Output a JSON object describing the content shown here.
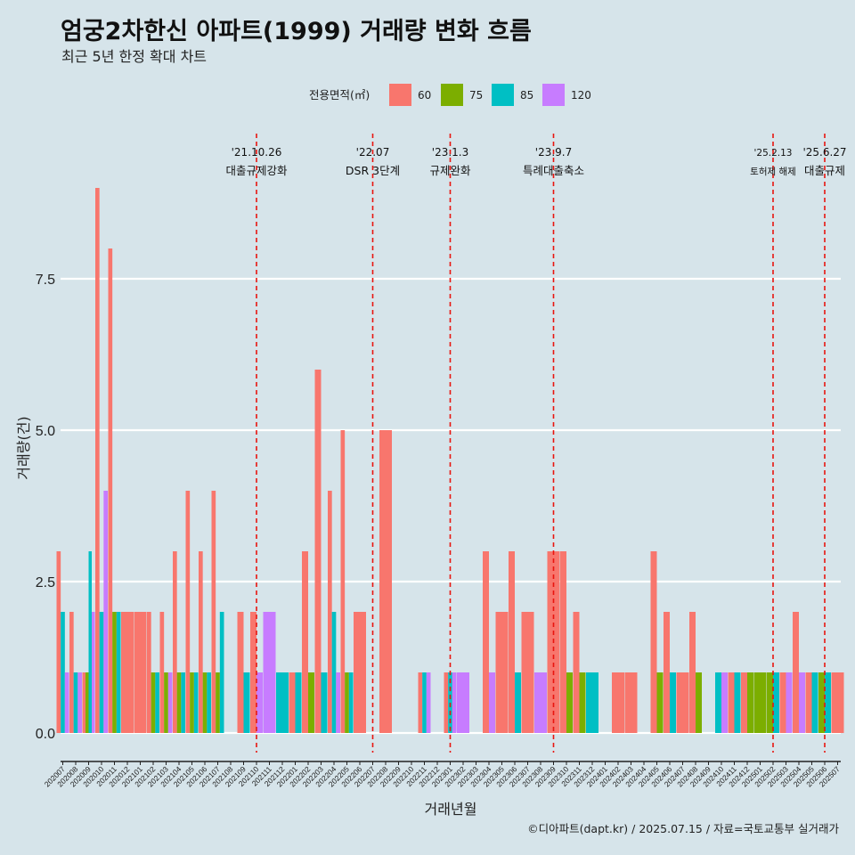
{
  "title": "엄궁2차한신 아파트(1999) 거래량 변화 흐름",
  "subtitle": "최근 5년 한정 확대 차트",
  "caption": "©디아파트(dapt.kr) / 2025.07.15 / 자료=국토교통부 실거래가",
  "colors": {
    "background": "#d6e4ea",
    "grid": "#ffffff",
    "event_line": "#e8150f",
    "60": "#f8766d",
    "75": "#7cae00",
    "85": "#00bfc4",
    "120": "#c77cff"
  },
  "chart_data": {
    "type": "bar",
    "position": "dodge",
    "title": "엄궁2차한신 아파트(1999) 거래량 변화 흐름",
    "subtitle": "최근 5년 한정 확대 차트",
    "xlabel": "거래년월",
    "ylabel": "거래량(건)",
    "ylim": [
      -0.4,
      9.5
    ],
    "yticks": [
      "0.0",
      "2.5",
      "5.0",
      "7.5"
    ],
    "ytick_values": [
      0,
      2.5,
      5,
      7.5
    ],
    "grid": true,
    "legend": {
      "title": "전용면적(㎡)",
      "placement": "top",
      "keys": [
        "60",
        "75",
        "85",
        "120"
      ]
    },
    "categories": [
      "202007",
      "202008",
      "202009",
      "202010",
      "202011",
      "202012",
      "202101",
      "202102",
      "202103",
      "202104",
      "202105",
      "202106",
      "202107",
      "202108",
      "202109",
      "202110",
      "202111",
      "202112",
      "202201",
      "202202",
      "202203",
      "202204",
      "202205",
      "202206",
      "202207",
      "202208",
      "202209",
      "202210",
      "202211",
      "202212",
      "202301",
      "202302",
      "202303",
      "202304",
      "202305",
      "202306",
      "202307",
      "202308",
      "202309",
      "202310",
      "202311",
      "202312",
      "202401",
      "202402",
      "202403",
      "202404",
      "202405",
      "202406",
      "202407",
      "202408",
      "202409",
      "202410",
      "202411",
      "202412",
      "202501",
      "202502",
      "202503",
      "202504",
      "202505",
      "202506",
      "202507"
    ],
    "months": [
      [
        {
          "a": "60",
          "v": 3
        },
        {
          "a": "85",
          "v": 2
        },
        {
          "a": "120",
          "v": 1
        }
      ],
      [
        {
          "a": "60",
          "v": 2
        },
        {
          "a": "85",
          "v": 1
        },
        {
          "a": "120",
          "v": 1
        }
      ],
      [
        {
          "a": "60",
          "v": 1
        },
        {
          "a": "75",
          "v": 1
        },
        {
          "a": "85",
          "v": 3
        },
        {
          "a": "120",
          "v": 2
        }
      ],
      [
        {
          "a": "60",
          "v": 9
        },
        {
          "a": "85",
          "v": 2
        },
        {
          "a": "120",
          "v": 4
        }
      ],
      [
        {
          "a": "60",
          "v": 8
        },
        {
          "a": "75",
          "v": 2
        },
        {
          "a": "85",
          "v": 2
        }
      ],
      [
        {
          "a": "60",
          "v": 2
        }
      ],
      [
        {
          "a": "60",
          "v": 2
        }
      ],
      [
        {
          "a": "60",
          "v": 2
        },
        {
          "a": "75",
          "v": 1
        },
        {
          "a": "85",
          "v": 1
        }
      ],
      [
        {
          "a": "60",
          "v": 2
        },
        {
          "a": "75",
          "v": 1
        },
        {
          "a": "120",
          "v": 1
        }
      ],
      [
        {
          "a": "60",
          "v": 3
        },
        {
          "a": "75",
          "v": 1
        },
        {
          "a": "85",
          "v": 1
        }
      ],
      [
        {
          "a": "60",
          "v": 4
        },
        {
          "a": "75",
          "v": 1
        },
        {
          "a": "85",
          "v": 1
        }
      ],
      [
        {
          "a": "60",
          "v": 3
        },
        {
          "a": "75",
          "v": 1
        },
        {
          "a": "85",
          "v": 1
        }
      ],
      [
        {
          "a": "60",
          "v": 4
        },
        {
          "a": "75",
          "v": 1
        },
        {
          "a": "85",
          "v": 2
        }
      ],
      [],
      [
        {
          "a": "60",
          "v": 2
        },
        {
          "a": "85",
          "v": 1
        }
      ],
      [
        {
          "a": "60",
          "v": 2
        },
        {
          "a": "120",
          "v": 1
        }
      ],
      [
        {
          "a": "120",
          "v": 2
        }
      ],
      [
        {
          "a": "85",
          "v": 1
        }
      ],
      [
        {
          "a": "60",
          "v": 1
        },
        {
          "a": "85",
          "v": 1
        }
      ],
      [
        {
          "a": "60",
          "v": 3
        },
        {
          "a": "75",
          "v": 1
        }
      ],
      [
        {
          "a": "60",
          "v": 6
        },
        {
          "a": "85",
          "v": 1
        }
      ],
      [
        {
          "a": "60",
          "v": 4
        },
        {
          "a": "85",
          "v": 2
        },
        {
          "a": "120",
          "v": 1
        }
      ],
      [
        {
          "a": "60",
          "v": 5
        },
        {
          "a": "75",
          "v": 1
        },
        {
          "a": "85",
          "v": 1
        }
      ],
      [
        {
          "a": "60",
          "v": 2
        }
      ],
      [],
      [
        {
          "a": "60",
          "v": 5
        }
      ],
      [],
      [],
      [
        {
          "a": "60",
          "v": 1
        },
        {
          "a": "85",
          "v": 1
        },
        {
          "a": "120",
          "v": 1
        }
      ],
      [],
      [
        {
          "a": "60",
          "v": 1
        },
        {
          "a": "85",
          "v": 1
        },
        {
          "a": "120",
          "v": 1
        }
      ],
      [
        {
          "a": "120",
          "v": 1
        }
      ],
      [],
      [
        {
          "a": "60",
          "v": 3
        },
        {
          "a": "120",
          "v": 1
        }
      ],
      [
        {
          "a": "60",
          "v": 2
        }
      ],
      [
        {
          "a": "60",
          "v": 3
        },
        {
          "a": "85",
          "v": 1
        }
      ],
      [
        {
          "a": "60",
          "v": 2
        }
      ],
      [
        {
          "a": "120",
          "v": 1
        }
      ],
      [
        {
          "a": "60",
          "v": 3
        }
      ],
      [
        {
          "a": "60",
          "v": 3
        },
        {
          "a": "75",
          "v": 1
        }
      ],
      [
        {
          "a": "60",
          "v": 2
        },
        {
          "a": "75",
          "v": 1
        }
      ],
      [
        {
          "a": "85",
          "v": 1
        }
      ],
      [],
      [
        {
          "a": "60",
          "v": 1
        }
      ],
      [
        {
          "a": "60",
          "v": 1
        }
      ],
      [],
      [
        {
          "a": "60",
          "v": 3
        },
        {
          "a": "75",
          "v": 1
        }
      ],
      [
        {
          "a": "60",
          "v": 2
        },
        {
          "a": "85",
          "v": 1
        }
      ],
      [
        {
          "a": "60",
          "v": 1
        }
      ],
      [
        {
          "a": "60",
          "v": 2
        },
        {
          "a": "75",
          "v": 1
        }
      ],
      [],
      [
        {
          "a": "85",
          "v": 1
        },
        {
          "a": "120",
          "v": 1
        }
      ],
      [
        {
          "a": "60",
          "v": 1
        },
        {
          "a": "85",
          "v": 1
        }
      ],
      [
        {
          "a": "60",
          "v": 1
        },
        {
          "a": "75",
          "v": 1
        }
      ],
      [
        {
          "a": "75",
          "v": 1
        }
      ],
      [
        {
          "a": "75",
          "v": 1
        },
        {
          "a": "85",
          "v": 1
        }
      ],
      [
        {
          "a": "60",
          "v": 1
        },
        {
          "a": "120",
          "v": 1
        }
      ],
      [
        {
          "a": "60",
          "v": 2
        },
        {
          "a": "120",
          "v": 1
        }
      ],
      [
        {
          "a": "60",
          "v": 1
        },
        {
          "a": "85",
          "v": 1
        }
      ],
      [
        {
          "a": "75",
          "v": 1
        },
        {
          "a": "85",
          "v": 1
        }
      ],
      [
        {
          "a": "60",
          "v": 1
        }
      ]
    ],
    "events": [
      {
        "x": "202110",
        "date": "'21.10.26",
        "label": "대출규제강화",
        "small": false
      },
      {
        "x": "202207",
        "date": "'22.07",
        "label": "DSR 3단계",
        "small": false
      },
      {
        "x": "202301",
        "date": "'23.1.3",
        "label": "규제완화",
        "small": false
      },
      {
        "x": "202309",
        "date": "'23.9.7",
        "label": "특례대출축소",
        "small": false
      },
      {
        "x": "202502",
        "date": "'25.2.13",
        "label": "토허제 해제",
        "small": true
      },
      {
        "x": "202506",
        "date": "'25.6.27",
        "label": "대출규제",
        "small": false
      }
    ]
  }
}
